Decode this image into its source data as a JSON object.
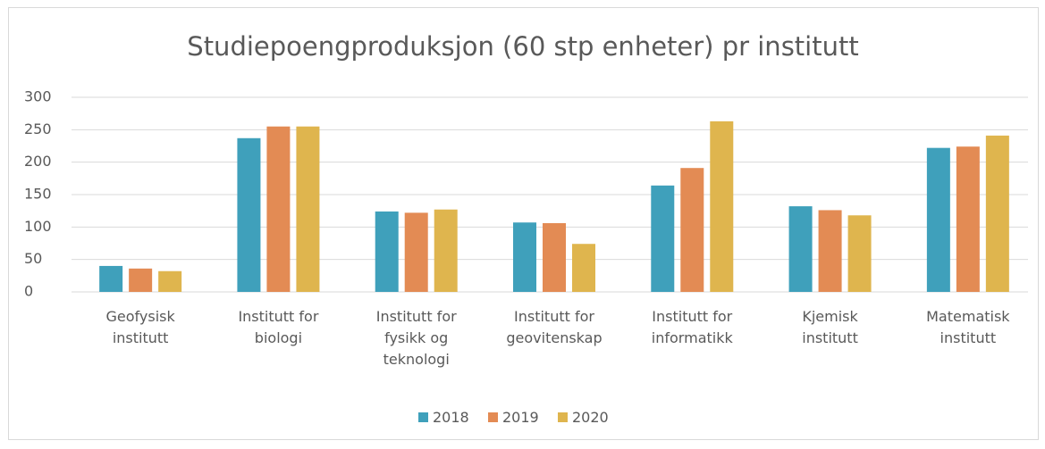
{
  "chart_data": {
    "type": "bar",
    "title": "Studiepoengproduksjon (60 stp enheter) pr institutt",
    "categories": [
      "Geofysisk institutt",
      "Institutt for biologi",
      "Institutt for fysikk og teknologi",
      "Institutt for geovitenskap",
      "Institutt for informatikk",
      "Kjemisk institutt",
      "Matematisk institutt"
    ],
    "series": [
      {
        "name": "2018",
        "color": "#3fa0bb",
        "values": [
          40,
          237,
          124,
          107,
          164,
          132,
          222
        ]
      },
      {
        "name": "2019",
        "color": "#e38b54",
        "values": [
          36,
          255,
          122,
          106,
          191,
          126,
          224
        ]
      },
      {
        "name": "2020",
        "color": "#dfb54e",
        "values": [
          32,
          255,
          127,
          74,
          263,
          118,
          241
        ]
      }
    ],
    "ylim": [
      0,
      300
    ],
    "yticks": [
      0,
      50,
      100,
      150,
      200,
      250,
      300
    ],
    "grid": true,
    "legend": "bottom"
  }
}
